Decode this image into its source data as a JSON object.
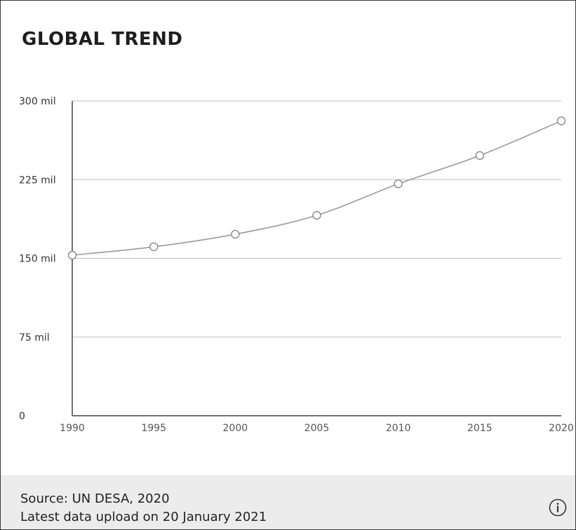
{
  "header": {
    "title": "GLOBAL TREND"
  },
  "chart_data": {
    "type": "line",
    "title": "GLOBAL TREND",
    "xlabel": "",
    "ylabel": "",
    "x": [
      1990,
      1995,
      2000,
      2005,
      2010,
      2015,
      2020
    ],
    "series": [
      {
        "values": [
          153,
          161,
          173,
          191,
          221,
          248,
          281
        ]
      }
    ],
    "ylim": [
      0,
      300
    ],
    "xlim": [
      1990,
      2020
    ],
    "y_ticks": [
      {
        "value": 300,
        "label": "300 mil"
      },
      {
        "value": 225,
        "label": "225 mil"
      },
      {
        "value": 150,
        "label": "150 mil"
      },
      {
        "value": 75,
        "label": "75 mil"
      },
      {
        "value": 0,
        "label": "0"
      }
    ],
    "x_ticks": [
      {
        "value": 1990,
        "label": "1990"
      },
      {
        "value": 1995,
        "label": "1995"
      },
      {
        "value": 2000,
        "label": "2000"
      },
      {
        "value": 2005,
        "label": "2005"
      },
      {
        "value": 2010,
        "label": "2010"
      },
      {
        "value": 2015,
        "label": "2015"
      },
      {
        "value": 2020,
        "label": "2020"
      }
    ],
    "grid": true,
    "legend": "none",
    "line_color": "#9a9a9a",
    "marker_fill": "#ffffff"
  },
  "footer": {
    "source": "Source: UN DESA, 2020",
    "upload": "Latest data upload on 20 January 2021",
    "info_icon": "info-icon"
  }
}
